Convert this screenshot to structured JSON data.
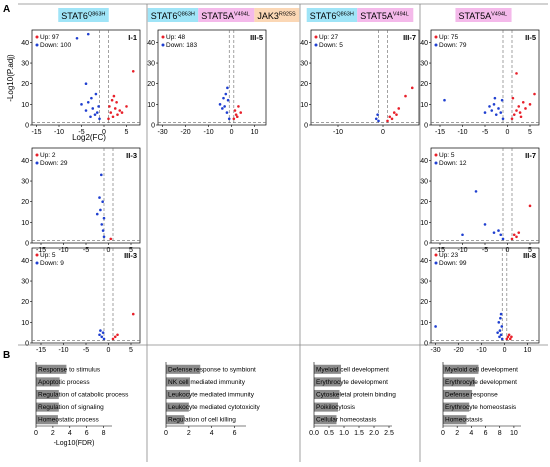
{
  "panel_letters": {
    "a": "A",
    "b": "B"
  },
  "columns": [
    {
      "id": "c1",
      "tags": [
        {
          "gene": "STAT6",
          "sup": "Q863H",
          "color": "#9fe4f7"
        }
      ]
    },
    {
      "id": "c2",
      "tags": [
        {
          "gene": "STAT6",
          "sup": "Q863H",
          "color": "#9fe4f7"
        },
        {
          "gene": "STAT5A",
          "sup": "V494L",
          "color": "#f4b9ea"
        },
        {
          "gene": "JAK3",
          "sup": "R925S",
          "color": "#fbd7b5"
        }
      ]
    },
    {
      "id": "c3",
      "tags": [
        {
          "gene": "STAT6",
          "sup": "Q863H",
          "color": "#9fe4f7"
        },
        {
          "gene": "STAT5A",
          "sup": "V494L",
          "color": "#f4b9ea"
        }
      ]
    },
    {
      "id": "c4",
      "tags": [
        {
          "gene": "STAT5A",
          "sup": "V494L",
          "color": "#f4b9ea"
        }
      ]
    }
  ],
  "volcano_axes": {
    "xlabel": "Log2(FC)",
    "ylabel": "-Log10(P.adj)"
  },
  "colors": {
    "up": "#e8202a",
    "down": "#1f3fd0",
    "ns": "#999999",
    "bar": "#8c8c8c",
    "divider": "#888888"
  },
  "chart_data": [
    {
      "type": "scatter",
      "panel": "I-1",
      "col": 0,
      "row": 0,
      "up_label": "Up: 97",
      "down_label": "Down: 100",
      "xlim": [
        -16,
        8
      ],
      "ylim": [
        0,
        46
      ],
      "xticks": [
        -15,
        -10,
        -5,
        0,
        5
      ],
      "yticks": [
        0,
        10,
        20,
        30,
        40
      ],
      "up_points": [
        [
          1,
          3
        ],
        [
          1.5,
          6
        ],
        [
          2,
          4
        ],
        [
          2.5,
          8
        ],
        [
          3,
          5
        ],
        [
          1.2,
          9
        ],
        [
          2.8,
          11
        ],
        [
          3.5,
          7
        ],
        [
          1.8,
          12
        ],
        [
          4,
          6
        ],
        [
          2.2,
          14
        ],
        [
          5,
          9
        ],
        [
          6.5,
          26
        ]
      ],
      "down_points": [
        [
          -1,
          3
        ],
        [
          -1.5,
          6
        ],
        [
          -2,
          5
        ],
        [
          -2.5,
          8
        ],
        [
          -3,
          4
        ],
        [
          -1.2,
          9
        ],
        [
          -3.5,
          11
        ],
        [
          -2.8,
          13
        ],
        [
          -4,
          7
        ],
        [
          -1.8,
          15
        ],
        [
          -5,
          10
        ],
        [
          -4,
          20
        ],
        [
          -3.5,
          44
        ],
        [
          -6,
          42
        ]
      ]
    },
    {
      "type": "scatter",
      "panel": "II-3",
      "col": 0,
      "row": 1,
      "up_label": "Up: 2",
      "down_label": "Down: 29",
      "xlim": [
        -17,
        7
      ],
      "ylim": [
        0,
        46
      ],
      "xticks": [
        -15,
        -10,
        -5,
        0,
        5
      ],
      "yticks": [
        0,
        10,
        20,
        30,
        40
      ],
      "up_points": [
        [
          0.5,
          2
        ]
      ],
      "down_points": [
        [
          -1,
          3
        ],
        [
          -1.2,
          6
        ],
        [
          -1.5,
          9
        ],
        [
          -1,
          12
        ],
        [
          -1.8,
          16
        ],
        [
          -1.3,
          20
        ],
        [
          -2,
          22
        ],
        [
          -1.6,
          33
        ],
        [
          -2.5,
          14
        ]
      ]
    },
    {
      "type": "scatter",
      "panel": "III-3",
      "col": 0,
      "row": 2,
      "up_label": "Up: 5",
      "down_label": "Down: 9",
      "xlim": [
        -17,
        7
      ],
      "ylim": [
        0,
        46
      ],
      "xticks": [
        -15,
        -10,
        -5,
        0,
        5
      ],
      "yticks": [
        0,
        10,
        20,
        30,
        40
      ],
      "up_points": [
        [
          1,
          2
        ],
        [
          1.5,
          3
        ],
        [
          2,
          4
        ],
        [
          5.5,
          14
        ]
      ],
      "down_points": [
        [
          -1,
          2
        ],
        [
          -1.5,
          3
        ],
        [
          -1.2,
          5
        ],
        [
          -2,
          4
        ],
        [
          -1.8,
          6
        ]
      ]
    },
    {
      "type": "scatter",
      "panel": "III-5",
      "col": 1,
      "row": 0,
      "up_label": "Up: 48",
      "down_label": "Down: 183",
      "xlim": [
        -32,
        15
      ],
      "ylim": [
        0,
        46
      ],
      "xticks": [
        -30,
        -20,
        -10,
        0,
        10
      ],
      "yticks": [
        0,
        10,
        20,
        30,
        40
      ],
      "up_points": [
        [
          1,
          3
        ],
        [
          2,
          5
        ],
        [
          1.5,
          7
        ],
        [
          3,
          9
        ],
        [
          2.5,
          4
        ],
        [
          4,
          6
        ]
      ],
      "down_points": [
        [
          -1,
          3
        ],
        [
          -2,
          6
        ],
        [
          -3,
          9
        ],
        [
          -1.5,
          12
        ],
        [
          -4,
          8
        ],
        [
          -2.5,
          15
        ],
        [
          -5,
          10
        ],
        [
          -1.8,
          18
        ],
        [
          -3.5,
          13
        ]
      ]
    },
    {
      "type": "scatter",
      "panel": "III-7",
      "col": 2,
      "row": 0,
      "up_label": "Up: 27",
      "down_label": "Down: 5",
      "xlim": [
        -16,
        8
      ],
      "ylim": [
        0,
        46
      ],
      "xticks": [
        -10,
        0
      ],
      "yticks": [
        0,
        10,
        20,
        30,
        40
      ],
      "up_points": [
        [
          1,
          2
        ],
        [
          1.5,
          4
        ],
        [
          2,
          3
        ],
        [
          2.5,
          6
        ],
        [
          3,
          5
        ],
        [
          3.5,
          8
        ],
        [
          5,
          14
        ],
        [
          6.5,
          18
        ]
      ],
      "down_points": [
        [
          -1,
          2
        ],
        [
          -1.5,
          3
        ],
        [
          -1.2,
          5
        ]
      ]
    },
    {
      "type": "scatter",
      "panel": "II-5",
      "col": 3,
      "row": 0,
      "up_label": "Up: 75",
      "down_label": "Down: 79",
      "xlim": [
        -17,
        7
      ],
      "ylim": [
        0,
        46
      ],
      "xticks": [
        -15,
        -10,
        -5,
        0,
        5
      ],
      "yticks": [
        0,
        10,
        20,
        30,
        40
      ],
      "up_points": [
        [
          1,
          3
        ],
        [
          1.5,
          5
        ],
        [
          2,
          7
        ],
        [
          2.5,
          9
        ],
        [
          3,
          4
        ],
        [
          3.5,
          11
        ],
        [
          1.2,
          13
        ],
        [
          4,
          8
        ],
        [
          2.8,
          6
        ],
        [
          5,
          10
        ],
        [
          2,
          25
        ],
        [
          6,
          15
        ]
      ],
      "down_points": [
        [
          -1,
          3
        ],
        [
          -1.5,
          6
        ],
        [
          -2,
          8
        ],
        [
          -2.5,
          5
        ],
        [
          -3,
          10
        ],
        [
          -1.2,
          12
        ],
        [
          -3.5,
          7
        ],
        [
          -4,
          9
        ],
        [
          -2.8,
          13
        ],
        [
          -5,
          6
        ],
        [
          -14,
          12
        ]
      ]
    },
    {
      "type": "scatter",
      "panel": "II-7",
      "col": 3,
      "row": 1,
      "up_label": "Up: 5",
      "down_label": "Down: 12",
      "xlim": [
        -17,
        7
      ],
      "ylim": [
        0,
        46
      ],
      "xticks": [
        -15,
        -10,
        -5,
        0,
        5
      ],
      "yticks": [
        0,
        10,
        20,
        30,
        40
      ],
      "up_points": [
        [
          1,
          2
        ],
        [
          1.5,
          4
        ],
        [
          2,
          3
        ],
        [
          2.5,
          5
        ],
        [
          5,
          18
        ]
      ],
      "down_points": [
        [
          -1,
          2
        ],
        [
          -1.5,
          4
        ],
        [
          -2,
          6
        ],
        [
          -3,
          5
        ],
        [
          -5,
          9
        ],
        [
          -7,
          25
        ],
        [
          -10,
          4
        ]
      ]
    },
    {
      "type": "scatter",
      "panel": "III-8",
      "col": 3,
      "row": 2,
      "up_label": "Up: 23",
      "down_label": "Down: 99",
      "xlim": [
        -32,
        15
      ],
      "ylim": [
        0,
        46
      ],
      "xticks": [
        -30,
        -20,
        -10,
        0,
        10
      ],
      "yticks": [
        0,
        10,
        20,
        30,
        40
      ],
      "up_points": [
        [
          1,
          2
        ],
        [
          1.5,
          3
        ],
        [
          2,
          4
        ],
        [
          2.5,
          2
        ],
        [
          3,
          3
        ]
      ],
      "down_points": [
        [
          -1,
          2
        ],
        [
          -1.5,
          4
        ],
        [
          -2,
          6
        ],
        [
          -1.2,
          8
        ],
        [
          -2.5,
          10
        ],
        [
          -1.8,
          12
        ],
        [
          -3,
          5
        ],
        [
          -1.5,
          14
        ],
        [
          -2.2,
          3
        ],
        [
          -30,
          8
        ]
      ]
    },
    {
      "type": "bar",
      "col": 0,
      "orientation": "horizontal",
      "xlabel": "-Log10(FDR)",
      "xlim": [
        0,
        9
      ],
      "xticks": [
        0,
        2,
        4,
        6,
        8
      ],
      "categories": [
        "Response to stimulus",
        "Apoptotic process",
        "Regulation of catabolic process",
        "Regulation of signaling",
        "Homeostatic process"
      ],
      "values": [
        3.6,
        2.8,
        2.7,
        2.7,
        2.6
      ]
    },
    {
      "type": "bar",
      "col": 1,
      "orientation": "horizontal",
      "xlabel": "",
      "xlim": [
        0,
        7
      ],
      "xticks": [
        0,
        2,
        4,
        6
      ],
      "categories": [
        "Defense response to symbiont",
        "NK cell mediated immunity",
        "Leukocyte mediated immunity",
        "Leukocyte mediated cytotoxicity",
        "Regulation of cell killing"
      ],
      "values": [
        3.0,
        2.1,
        2.1,
        2.0,
        1.6
      ]
    },
    {
      "type": "bar",
      "col": 2,
      "orientation": "horizontal",
      "xlabel": "",
      "xlim": [
        0,
        2.6
      ],
      "xticks": [
        0.0,
        0.5,
        1.0,
        1.5,
        2.0,
        2.5
      ],
      "tick_decimals": 1,
      "categories": [
        "Myeloid cell development",
        "Erythrocyte development",
        "Cytoskeletal protein binding",
        "Poikilocytosis",
        "Cellular homeostasis"
      ],
      "values": [
        0.9,
        0.9,
        0.85,
        0.8,
        0.75
      ]
    },
    {
      "type": "bar",
      "col": 3,
      "orientation": "horizontal",
      "xlabel": "",
      "xlim": [
        0,
        11
      ],
      "xticks": [
        0,
        2,
        4,
        6,
        8,
        10
      ],
      "categories": [
        "Myeloid cell development",
        "Erythrocyte development",
        "Defense response",
        "Erythrocyte homeostasis",
        "Homeostasis"
      ],
      "values": [
        5.0,
        4.5,
        4.1,
        3.7,
        3.3
      ]
    }
  ]
}
